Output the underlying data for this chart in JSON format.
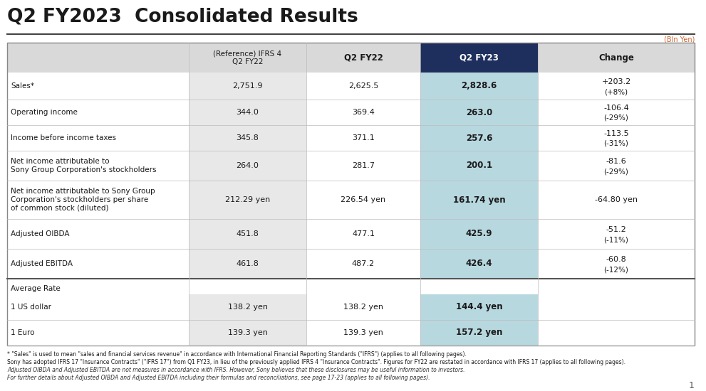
{
  "title": "Q2 FY2023  Consolidated Results",
  "bln_yen_label": "(Bln Yen)",
  "col_headers": [
    "(Reference) IFRS 4\nQ2 FY22",
    "Q2 FY22",
    "Q2 FY23",
    "Change"
  ],
  "rows": [
    {
      "label": "Sales*",
      "col1": "2,751.9",
      "col2": "2,625.5",
      "col3": "2,828.6",
      "col4_line1": "+203.2",
      "col4_line2": "(+8%)"
    },
    {
      "label": "Operating income",
      "col1": "344.0",
      "col2": "369.4",
      "col3": "263.0",
      "col4_line1": "-106.4",
      "col4_line2": "(-29%)"
    },
    {
      "label": "Income before income taxes",
      "col1": "345.8",
      "col2": "371.1",
      "col3": "257.6",
      "col4_line1": "-113.5",
      "col4_line2": "(-31%)"
    },
    {
      "label": "Net income attributable to\nSony Group Corporation's stockholders",
      "col1": "264.0",
      "col2": "281.7",
      "col3": "200.1",
      "col4_line1": "-81.6",
      "col4_line2": "(-29%)"
    },
    {
      "label": "Net income attributable to Sony Group\nCorporation's stockholders per share\nof common stock (diluted)",
      "col1": "212.29 yen",
      "col2": "226.54 yen",
      "col3": "161.74 yen",
      "col4_line1": "-64.80 yen",
      "col4_line2": ""
    },
    {
      "label": "Adjusted OIBDA",
      "col1": "451.8",
      "col2": "477.1",
      "col3": "425.9",
      "col4_line1": "-51.2",
      "col4_line2": "(-11%)"
    },
    {
      "label": "Adjusted EBITDA",
      "col1": "461.8",
      "col2": "487.2",
      "col3": "426.4",
      "col4_line1": "-60.8",
      "col4_line2": "(-12%)"
    }
  ],
  "avg_rate_label": "Average Rate",
  "avg_rows": [
    {
      "label": "1 US dollar",
      "col1": "138.2 yen",
      "col2": "138.2 yen",
      "col3": "144.4 yen"
    },
    {
      "label": "1 Euro",
      "col1": "139.3 yen",
      "col2": "139.3 yen",
      "col3": "157.2 yen"
    }
  ],
  "footnotes": [
    [
      "normal",
      "* \"Sales\" is used to mean \"sales and financial services revenue\" in accordance with International Financial Reporting Standards (\"IFRS\") (applies to all following pages)."
    ],
    [
      "normal",
      "Sony has adopted IFRS 17 \"Insurance Contracts\" (\"IFRS 17\") from Q1 FY23, in lieu of the previously applied IFRS 4 \"Insurance Contracts\". Figures for FY22 are restated in accordance with IFRS 17 (applies to all following pages)."
    ],
    [
      "italic",
      "Adjusted OIBDA and Adjusted EBITDA are not measures in accordance with IFRS. However, Sony believes that these disclosures may be useful information to investors."
    ],
    [
      "italic",
      "For further details about Adjusted OIBDA and Adjusted EBITDA including their formulas and reconciliations, see page 17-23 (applies to all following pages)."
    ]
  ],
  "page_number": "1",
  "colors": {
    "title_text": "#1a1a1a",
    "header_bg_dark": "#1e2f5e",
    "header_bg_light": "#d9d9d9",
    "col1_bg": "#e8e8e8",
    "col3_bg": "#b8d8e0",
    "header_text_dark": "#ffffff",
    "header_text_light": "#1a1a1a",
    "bln_yen_color": "#cc6633",
    "sep_line": "#555555",
    "grid_line": "#bbbbbb"
  }
}
